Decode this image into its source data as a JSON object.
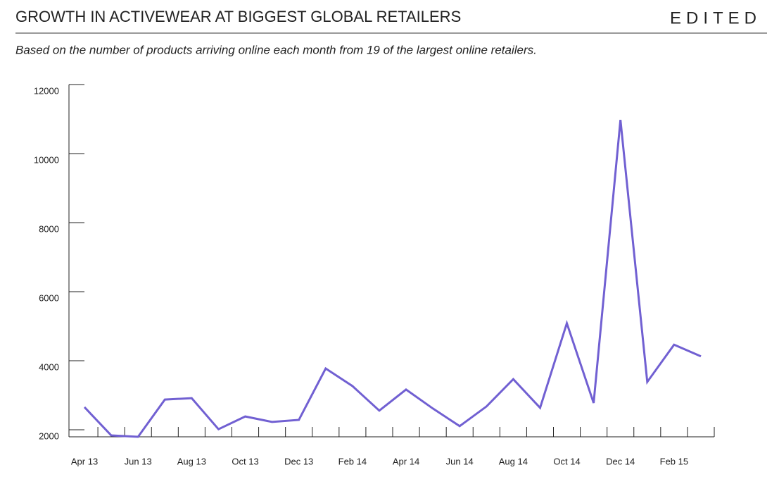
{
  "header": {
    "brand": "EDITED"
  },
  "chart_data": {
    "type": "line",
    "title": "GROWTH IN ACTIVEWEAR AT BIGGEST GLOBAL RETAILERS",
    "subtitle": "Based on the number of products arriving online each month from 19 of the largest online retailers.",
    "categories": [
      "Apr 13",
      null,
      "Jun 13",
      null,
      "Aug 13",
      null,
      "Oct 13",
      null,
      "Dec 13",
      null,
      "Feb 14",
      null,
      "Apr 14",
      null,
      "Jun 14",
      null,
      "Aug 14",
      null,
      "Oct 14",
      null,
      "Dec 14",
      null,
      "Feb 15",
      null
    ],
    "series": [
      {
        "color": "#7160d2",
        "values": [
          2860,
          2040,
          2000,
          3080,
          3120,
          2220,
          2590,
          2430,
          2490,
          3980,
          3470,
          2760,
          3370,
          2820,
          2310,
          2880,
          3670,
          2840,
          5290,
          2980,
          11180,
          3590,
          4670,
          4330
        ]
      }
    ],
    "ylim": [
      2000,
      12000
    ],
    "yticks": [
      2000,
      4000,
      6000,
      8000,
      10000,
      12000
    ]
  }
}
